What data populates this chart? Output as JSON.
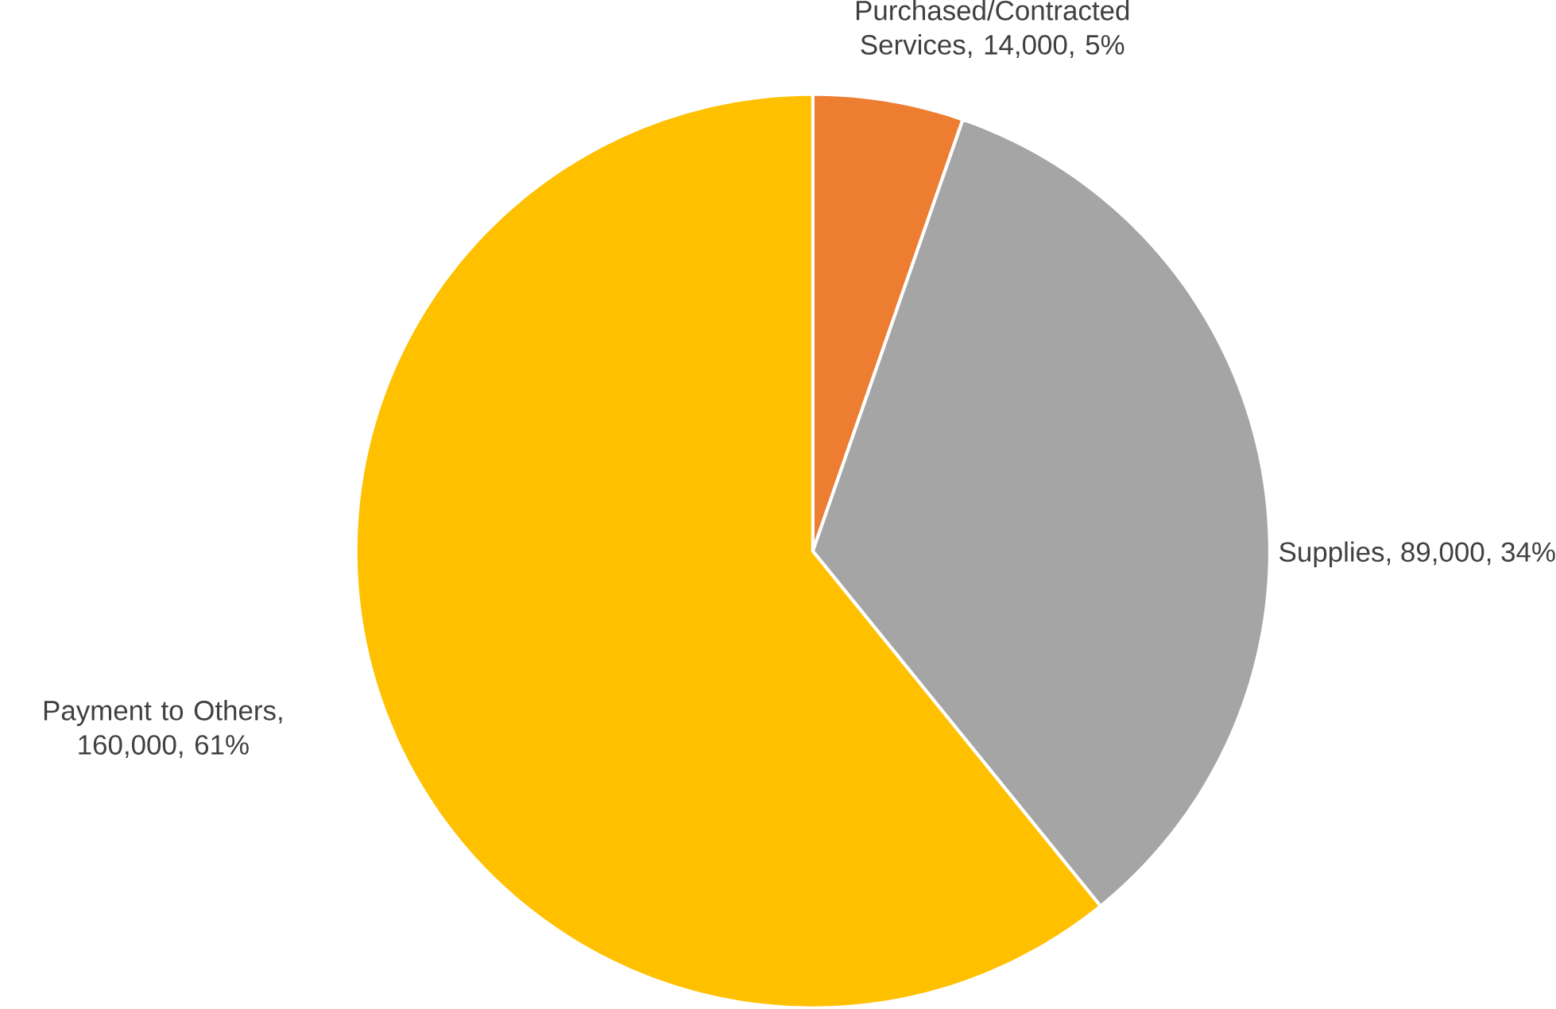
{
  "chart_data": {
    "type": "pie",
    "categories": [
      "Purchased/Contracted Services",
      "Supplies",
      "Payment to Others"
    ],
    "values": [
      14000,
      89000,
      160000
    ],
    "colors": [
      "#ed7d31",
      "#a5a5a5",
      "#ffc000"
    ],
    "value_labels": [
      ", 14,000, 5%",
      ", 89,000, 34%",
      ", 160,000, 61%"
    ]
  }
}
